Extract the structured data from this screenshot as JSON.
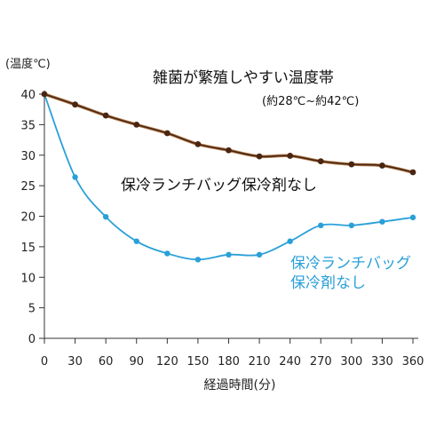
{
  "chart_data": {
    "type": "line",
    "ylabel": "(温度℃)",
    "xlabel": "経過時間(分)",
    "x": [
      0,
      30,
      60,
      90,
      120,
      150,
      180,
      210,
      240,
      270,
      300,
      330,
      360
    ],
    "xticks": [
      "0",
      "30",
      "60",
      "90",
      "120",
      "150",
      "180",
      "210",
      "240",
      "270",
      "300",
      "330",
      "360"
    ],
    "yticks": [
      "0",
      "5",
      "10",
      "15",
      "20",
      "25",
      "30",
      "35",
      "40"
    ],
    "xlim": [
      0,
      360
    ],
    "ylim": [
      0,
      40
    ],
    "grid": false,
    "series": [
      {
        "name": "保冷ランチバッグ保冷剤なし",
        "color": "#6b3a22",
        "values": [
          40,
          38.3,
          36.5,
          35.0,
          33.6,
          31.8,
          30.8,
          29.8,
          29.9,
          29.0,
          28.5,
          28.3,
          27.2
        ]
      },
      {
        "name": "保冷ランチバッグ保冷剤なし",
        "color": "#2aa0d8",
        "values": [
          40,
          26.4,
          19.9,
          15.9,
          13.9,
          12.9,
          13.7,
          13.7,
          15.9,
          18.5,
          18.5,
          19.1,
          19.8
        ]
      }
    ],
    "annotations": {
      "danger_zone": "雑菌が繁殖しやすい温度帯",
      "danger_range": "(約28℃~約42℃)",
      "brown_label": "保冷ランチバッグ保冷剤なし",
      "blue_label_line1": "保冷ランチバッグ",
      "blue_label_line2": "保冷剤なし"
    }
  }
}
